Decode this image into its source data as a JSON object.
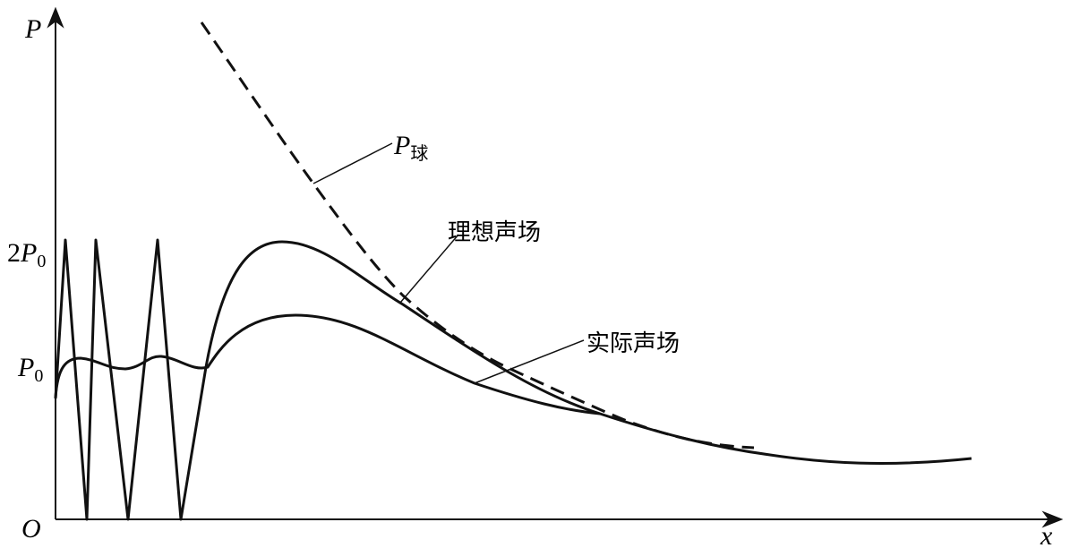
{
  "axes": {
    "y_label": "P",
    "x_label": "x",
    "origin": "O"
  },
  "levels": [
    {
      "coef": "2",
      "var": "P",
      "sub": "0"
    },
    {
      "coef": "",
      "var": "P",
      "sub": "0"
    }
  ],
  "annotations": {
    "sphere": {
      "var": "P",
      "sub": "球"
    },
    "ideal": "理想声场",
    "actual": "实际声场"
  }
}
